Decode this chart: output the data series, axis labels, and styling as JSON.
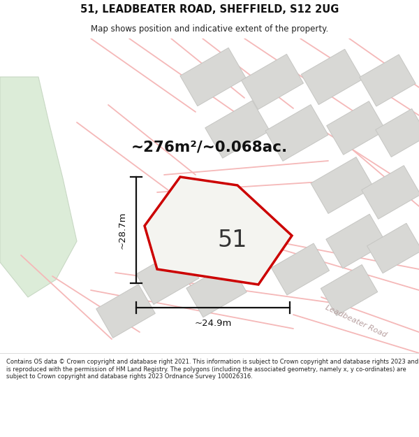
{
  "title_line1": "51, LEADBEATER ROAD, SHEFFIELD, S12 2UG",
  "title_line2": "Map shows position and indicative extent of the property.",
  "area_text": "~276m²/~0.068ac.",
  "plot_number": "51",
  "dim_width": "~24.9m",
  "dim_height": "~28.7m",
  "road_label": "Leadbeater Road",
  "footer_text": "Contains OS data © Crown copyright and database right 2021. This information is subject to Crown copyright and database rights 2023 and is reproduced with the permission of HM Land Registry. The polygons (including the associated geometry, namely x, y co-ordinates) are subject to Crown copyright and database rights 2023 Ordnance Survey 100026316.",
  "bg_color": "#f8f8f5",
  "map_bg": "#f4f4f0",
  "plot_fill": "#f4f4f0",
  "plot_edge": "#cc0000",
  "road_lines_color": "#f5b8b8",
  "building_fill": "#d8d8d5",
  "building_edge": "#c5c5c2",
  "green_area": "#dcecd8",
  "green_edge": "#c8d8c4",
  "title_bg": "#ffffff",
  "footer_bg": "#ffffff"
}
